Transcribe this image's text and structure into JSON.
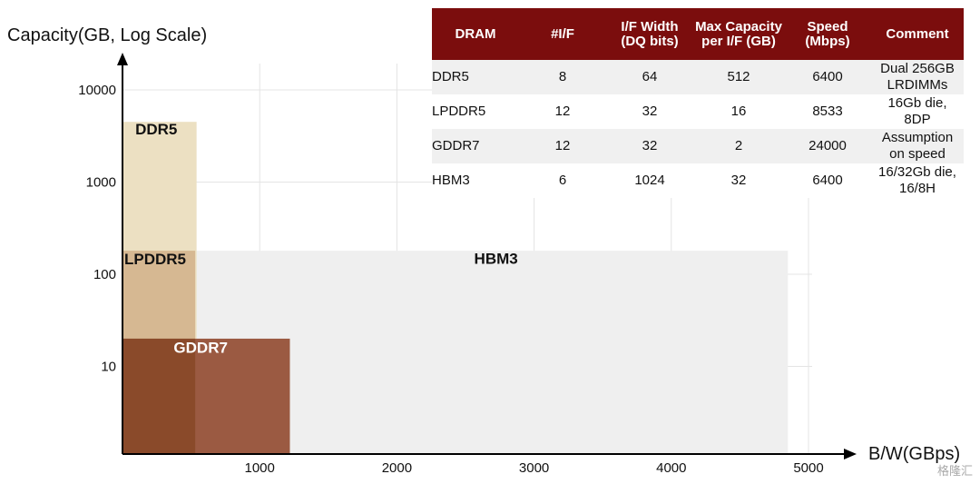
{
  "chart_data": {
    "type": "area",
    "ylabel": "Capacity(GB, Log Scale)",
    "xlabel": "B/W(GBps)",
    "xlim": [
      0,
      5000
    ],
    "ylim": [
      1,
      10000
    ],
    "y_scale": "log",
    "x_ticks": [
      {
        "value": 1000,
        "label": "1000"
      },
      {
        "value": 2000,
        "label": "2000"
      },
      {
        "value": 3000,
        "label": "3000"
      },
      {
        "value": 4000,
        "label": "4000"
      },
      {
        "value": 5000,
        "label": "5000"
      }
    ],
    "y_ticks": [
      {
        "value": 10,
        "label": "10"
      },
      {
        "value": 100,
        "label": "100"
      },
      {
        "value": 1000,
        "label": "1000"
      },
      {
        "value": 10000,
        "label": "10000"
      }
    ],
    "grid": true,
    "regions": [
      {
        "name": "HBM3",
        "x": [
          0,
          4850
        ],
        "y": [
          1,
          180
        ],
        "color": "#efefef",
        "label_at": [
          2550,
          130
        ]
      },
      {
        "name": "DDR5",
        "x": [
          0,
          540
        ],
        "y": [
          1,
          4500
        ],
        "color": "#ece0c2",
        "label_at": [
          80,
          3300
        ]
      },
      {
        "name": "LPDDR5",
        "x": [
          0,
          530
        ],
        "y": [
          1,
          180
        ],
        "color": "#d6b892",
        "label_at": [
          0,
          128
        ]
      },
      {
        "name": "GDDR7",
        "x": [
          0,
          1220
        ],
        "y": [
          1,
          20
        ],
        "color": "#9b5a42",
        "label_at": [
          360,
          14
        ],
        "label_color": "#ffffff"
      }
    ],
    "overlap_regions": [
      {
        "x": [
          0,
          530
        ],
        "y": [
          1,
          20
        ],
        "color": "#8a4a2a"
      }
    ]
  },
  "table": {
    "headers": [
      "DRAM",
      "#I/F",
      "I/F Width (DQ bits)",
      "Max Capacity per I/F (GB)",
      "Speed (Mbps)",
      "Comment"
    ],
    "rows": [
      [
        "DDR5",
        "8",
        "64",
        "512",
        "6400",
        "Dual 256GB LRDIMMs"
      ],
      [
        "LPDDR5",
        "12",
        "32",
        "16",
        "8533",
        "16Gb die, 8DP"
      ],
      [
        "GDDR7",
        "12",
        "32",
        "2",
        "24000",
        "Assumption on speed"
      ],
      [
        "HBM3",
        "6",
        "1024",
        "32",
        "6400",
        "16/32Gb die, 16/8H"
      ]
    ]
  },
  "watermark": "格隆汇"
}
